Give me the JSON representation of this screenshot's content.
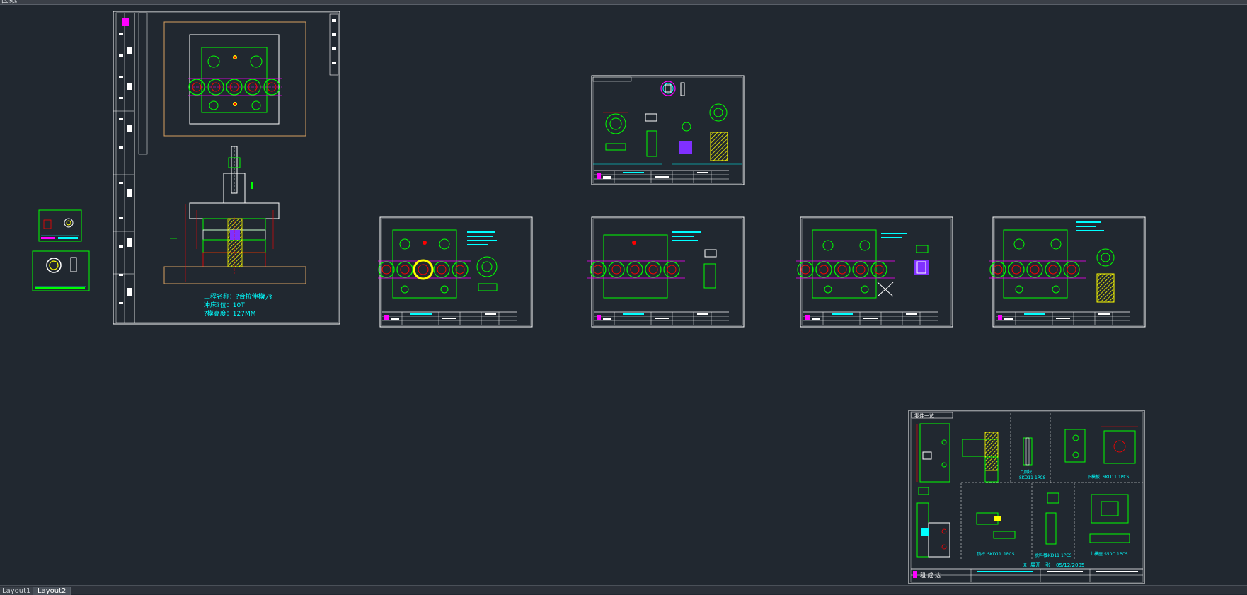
{
  "window": {
    "title_fragment": "图纸"
  },
  "tabs": [
    {
      "label": "Layout1",
      "active": false
    },
    {
      "label": "Layout2",
      "active": true
    }
  ],
  "main_sheet": {
    "notes": [
      "工程名称：?合拉伸模",
      "冲床?位：10T",
      "?模高度：127MM"
    ],
    "scribble": "1/3"
  },
  "parts_sheet": {
    "title": "零件一览",
    "labels": [
      "上顶块",
      "SKD11",
      "1PCS",
      "下模板",
      "SKD11",
      "1PCS",
      "顶杆",
      "SKD11",
      "1PCS",
      "脱料板",
      "SKD11",
      "1PCS",
      "上模座",
      "S50C",
      "1PCS"
    ],
    "footer_label": "X",
    "footer_title": "展开一张",
    "footer_date": "05/12/2005",
    "company": "租 成 达"
  },
  "colors": {
    "background": "#212830",
    "sheet_border": "#ffffff",
    "outline": "#00ff00",
    "dimension": "#ff0000",
    "text": "#00ffff",
    "hatch": "#ffff00",
    "centerline": "#ff00ff",
    "plate": "#ffffff"
  }
}
